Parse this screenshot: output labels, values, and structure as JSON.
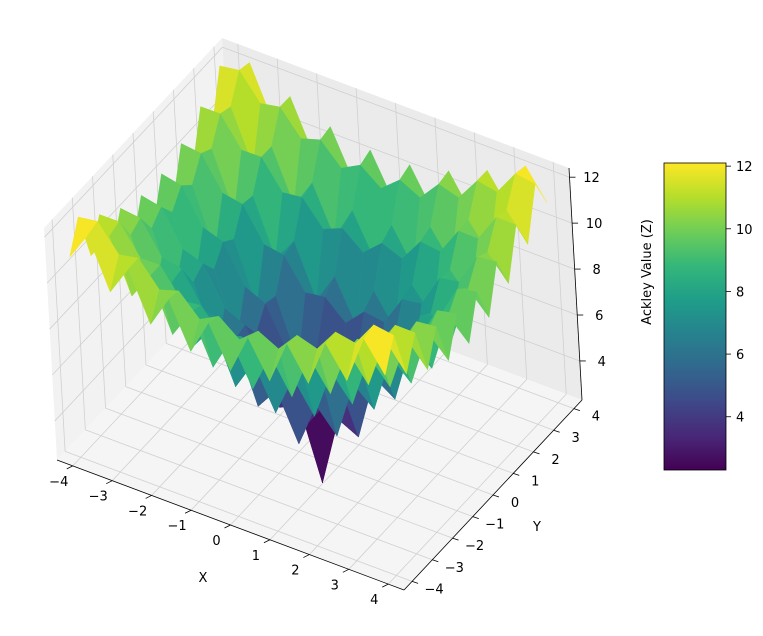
{
  "chart_data": {
    "type": "surface3d",
    "surface_function": "ackley",
    "x": [
      -4,
      -3.5,
      -3,
      -2.5,
      -2,
      -1.5,
      -1,
      -0.5,
      0,
      0.5,
      1,
      1.5,
      2,
      2.5,
      3,
      3.5,
      4
    ],
    "y": [
      -4,
      -3.5,
      -3,
      -2.5,
      -2,
      -1.5,
      -1,
      -0.5,
      0,
      0.5,
      1,
      1.5,
      2,
      2.5,
      3,
      3.5,
      4
    ],
    "zlim": [
      2.3,
      12.4
    ],
    "axes": {
      "x": {
        "label": "X",
        "ticks": [
          "−4",
          "−3",
          "−2",
          "−1",
          "0",
          "1",
          "2",
          "3",
          "4"
        ],
        "tick_values": [
          -4,
          -3,
          -2,
          -1,
          0,
          1,
          2,
          3,
          4
        ]
      },
      "y": {
        "label": "Y",
        "ticks": [
          "−4",
          "−3",
          "−2",
          "−1",
          "0",
          "1",
          "2",
          "3",
          "4"
        ],
        "tick_values": [
          -4,
          -3,
          -2,
          -1,
          0,
          1,
          2,
          3,
          4
        ]
      },
      "z": {
        "label": "",
        "ticks": [
          "4",
          "6",
          "8",
          "10",
          "12"
        ],
        "tick_values": [
          4,
          6,
          8,
          10,
          12
        ]
      }
    },
    "colorbar": {
      "label": "Ackley Value (Z)",
      "colormap": "viridis",
      "range": [
        2.3,
        12.1
      ],
      "ticks": [
        "4",
        "6",
        "8",
        "10",
        "12"
      ],
      "tick_values": [
        4,
        6,
        8,
        10,
        12
      ]
    },
    "colormap_stops": [
      "#440154",
      "#482878",
      "#3e4989",
      "#31688e",
      "#26828e",
      "#1f9e89",
      "#35b779",
      "#6ece58",
      "#b5de2b",
      "#fde725"
    ],
    "grid": true
  }
}
